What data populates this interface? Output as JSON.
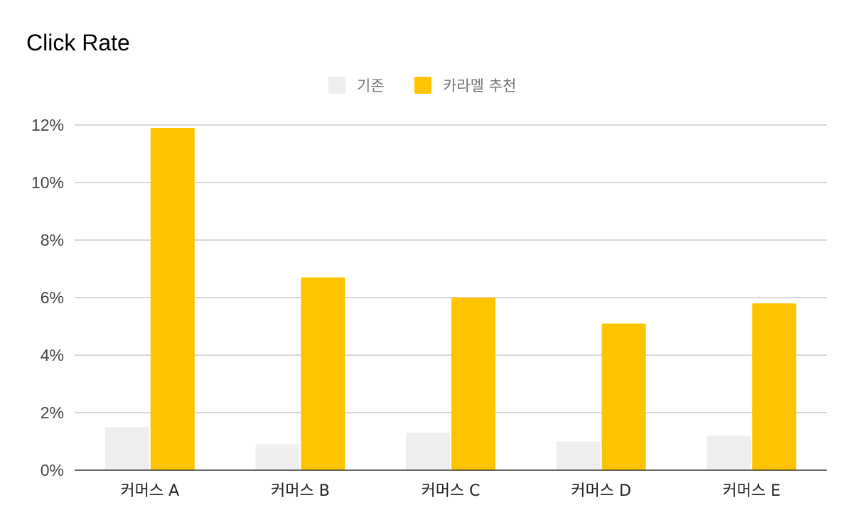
{
  "chart_data": {
    "type": "bar",
    "title": "Click Rate",
    "categories": [
      "커머스 A",
      "커머스 B",
      "커머스 C",
      "커머스 D",
      "커머스 E"
    ],
    "series": [
      {
        "name": "기존",
        "values": [
          1.5,
          0.9,
          1.3,
          1.0,
          1.2
        ],
        "color": "#eeeeee"
      },
      {
        "name": "카라멜 추천",
        "values": [
          11.9,
          6.7,
          6.0,
          5.1,
          5.8
        ],
        "color": "#ffc400"
      }
    ],
    "y_ticks": [
      "0%",
      "2%",
      "4%",
      "6%",
      "8%",
      "10%",
      "12%"
    ],
    "ylim": [
      0,
      12
    ],
    "xlabel": "",
    "ylabel": "",
    "grid": true,
    "legend_position": "top-center"
  }
}
